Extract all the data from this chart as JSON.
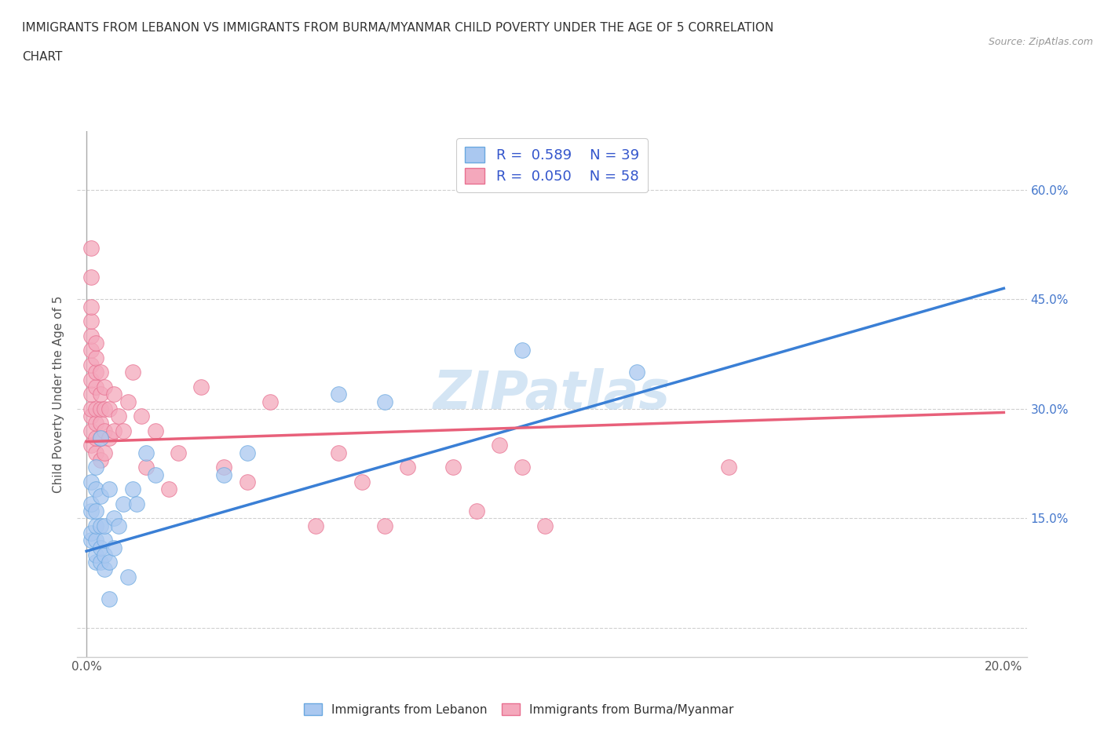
{
  "title_line1": "IMMIGRANTS FROM LEBANON VS IMMIGRANTS FROM BURMA/MYANMAR CHILD POVERTY UNDER THE AGE OF 5 CORRELATION",
  "title_line2": "CHART",
  "source": "Source: ZipAtlas.com",
  "ylabel": "Child Poverty Under the Age of 5",
  "xlim": [
    -0.002,
    0.205
  ],
  "ylim": [
    -0.04,
    0.68
  ],
  "x_ticks": [
    0.0,
    0.05,
    0.1,
    0.15,
    0.2
  ],
  "x_tick_labels": [
    "0.0%",
    "",
    "",
    "",
    "20.0%"
  ],
  "y_ticks": [
    0.0,
    0.15,
    0.3,
    0.45,
    0.6
  ],
  "y_tick_labels_right": [
    "",
    "15.0%",
    "30.0%",
    "45.0%",
    "60.0%"
  ],
  "background_color": "#ffffff",
  "grid_color": "#d0d0d0",
  "watermark": "ZIPatlas",
  "lebanon_color": "#aac8f0",
  "burma_color": "#f4a8bc",
  "lebanon_edge_color": "#6aa8e0",
  "burma_edge_color": "#e87090",
  "lebanon_line_color": "#3a7fd5",
  "burma_line_color": "#e8607a",
  "lebanon_label": "Immigrants from Lebanon",
  "burma_label": "Immigrants from Burma/Myanmar",
  "lebanon_scatter": [
    [
      0.001,
      0.12
    ],
    [
      0.001,
      0.13
    ],
    [
      0.001,
      0.16
    ],
    [
      0.001,
      0.17
    ],
    [
      0.001,
      0.2
    ],
    [
      0.002,
      0.09
    ],
    [
      0.002,
      0.1
    ],
    [
      0.002,
      0.12
    ],
    [
      0.002,
      0.14
    ],
    [
      0.002,
      0.16
    ],
    [
      0.002,
      0.19
    ],
    [
      0.002,
      0.22
    ],
    [
      0.003,
      0.09
    ],
    [
      0.003,
      0.11
    ],
    [
      0.003,
      0.14
    ],
    [
      0.003,
      0.18
    ],
    [
      0.003,
      0.26
    ],
    [
      0.004,
      0.08
    ],
    [
      0.004,
      0.1
    ],
    [
      0.004,
      0.12
    ],
    [
      0.004,
      0.14
    ],
    [
      0.005,
      0.04
    ],
    [
      0.005,
      0.09
    ],
    [
      0.005,
      0.19
    ],
    [
      0.006,
      0.11
    ],
    [
      0.006,
      0.15
    ],
    [
      0.007,
      0.14
    ],
    [
      0.008,
      0.17
    ],
    [
      0.009,
      0.07
    ],
    [
      0.01,
      0.19
    ],
    [
      0.011,
      0.17
    ],
    [
      0.013,
      0.24
    ],
    [
      0.015,
      0.21
    ],
    [
      0.03,
      0.21
    ],
    [
      0.035,
      0.24
    ],
    [
      0.055,
      0.32
    ],
    [
      0.065,
      0.31
    ],
    [
      0.095,
      0.38
    ],
    [
      0.12,
      0.35
    ]
  ],
  "burma_scatter": [
    [
      0.001,
      0.25
    ],
    [
      0.001,
      0.27
    ],
    [
      0.001,
      0.29
    ],
    [
      0.001,
      0.3
    ],
    [
      0.001,
      0.32
    ],
    [
      0.001,
      0.34
    ],
    [
      0.001,
      0.36
    ],
    [
      0.001,
      0.38
    ],
    [
      0.001,
      0.4
    ],
    [
      0.001,
      0.42
    ],
    [
      0.001,
      0.44
    ],
    [
      0.001,
      0.48
    ],
    [
      0.001,
      0.52
    ],
    [
      0.002,
      0.24
    ],
    [
      0.002,
      0.26
    ],
    [
      0.002,
      0.28
    ],
    [
      0.002,
      0.3
    ],
    [
      0.002,
      0.33
    ],
    [
      0.002,
      0.35
    ],
    [
      0.002,
      0.37
    ],
    [
      0.002,
      0.39
    ],
    [
      0.003,
      0.23
    ],
    [
      0.003,
      0.26
    ],
    [
      0.003,
      0.28
    ],
    [
      0.003,
      0.3
    ],
    [
      0.003,
      0.32
    ],
    [
      0.003,
      0.35
    ],
    [
      0.004,
      0.24
    ],
    [
      0.004,
      0.27
    ],
    [
      0.004,
      0.3
    ],
    [
      0.004,
      0.33
    ],
    [
      0.005,
      0.26
    ],
    [
      0.005,
      0.3
    ],
    [
      0.006,
      0.27
    ],
    [
      0.006,
      0.32
    ],
    [
      0.007,
      0.29
    ],
    [
      0.008,
      0.27
    ],
    [
      0.009,
      0.31
    ],
    [
      0.01,
      0.35
    ],
    [
      0.012,
      0.29
    ],
    [
      0.013,
      0.22
    ],
    [
      0.015,
      0.27
    ],
    [
      0.018,
      0.19
    ],
    [
      0.02,
      0.24
    ],
    [
      0.025,
      0.33
    ],
    [
      0.03,
      0.22
    ],
    [
      0.035,
      0.2
    ],
    [
      0.04,
      0.31
    ],
    [
      0.05,
      0.14
    ],
    [
      0.055,
      0.24
    ],
    [
      0.06,
      0.2
    ],
    [
      0.065,
      0.14
    ],
    [
      0.07,
      0.22
    ],
    [
      0.08,
      0.22
    ],
    [
      0.085,
      0.16
    ],
    [
      0.09,
      0.25
    ],
    [
      0.095,
      0.22
    ],
    [
      0.1,
      0.14
    ],
    [
      0.14,
      0.22
    ]
  ],
  "lebanon_trendline": [
    [
      0.0,
      0.105
    ],
    [
      0.2,
      0.465
    ]
  ],
  "burma_trendline": [
    [
      0.0,
      0.255
    ],
    [
      0.2,
      0.295
    ]
  ]
}
